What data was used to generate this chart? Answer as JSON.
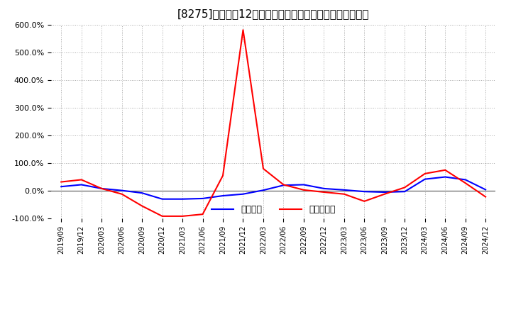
{
  "title": "[8275]　利益だ12か月移動合計の対前年同期増減率の推移",
  "background_color": "#ffffff",
  "grid_color": "#aaaaaa",
  "line_color_keijo": "#0000ff",
  "line_color_touki": "#ff0000",
  "legend_keijo": "経常利益",
  "legend_touki": "当期純利益",
  "x_labels": [
    "2019/09",
    "2019/12",
    "2020/03",
    "2020/06",
    "2020/09",
    "2020/12",
    "2021/03",
    "2021/06",
    "2021/09",
    "2021/12",
    "2022/03",
    "2022/06",
    "2022/09",
    "2022/12",
    "2023/03",
    "2023/06",
    "2023/09",
    "2023/12",
    "2024/03",
    "2024/06",
    "2024/09",
    "2024/12"
  ],
  "keijo": [
    0.15,
    0.22,
    0.08,
    0.01,
    -0.08,
    -0.3,
    -0.3,
    -0.28,
    -0.18,
    -0.12,
    0.02,
    0.2,
    0.22,
    0.08,
    0.03,
    -0.03,
    -0.05,
    -0.03,
    0.42,
    0.5,
    0.4,
    0.04
  ],
  "touki": [
    0.32,
    0.4,
    0.08,
    -0.12,
    -0.55,
    -0.92,
    -0.92,
    -0.85,
    0.55,
    5.82,
    0.8,
    0.22,
    0.03,
    -0.05,
    -0.12,
    -0.38,
    -0.12,
    0.12,
    0.62,
    0.75,
    0.28,
    -0.22
  ],
  "ylim_min": -1.0,
  "ylim_max": 6.0,
  "yticks": [
    -1.0,
    0.0,
    1.0,
    2.0,
    3.0,
    4.0,
    5.0,
    6.0
  ],
  "ytick_labels": [
    "-100.0%",
    "0.0%",
    "100.0%",
    "200.0%",
    "300.0%",
    "400.0%",
    "500.0%",
    "600.0%"
  ]
}
